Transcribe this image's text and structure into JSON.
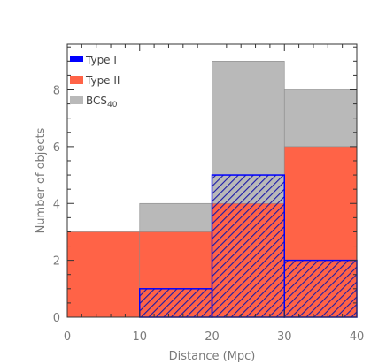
{
  "chart_data": {
    "type": "bar",
    "title": "",
    "xlabel": "Distance (Mpc)",
    "ylabel": "Number of objects",
    "bins": [
      [
        0,
        10
      ],
      [
        10,
        20
      ],
      [
        20,
        30
      ],
      [
        30,
        40
      ]
    ],
    "xlim": [
      0,
      40
    ],
    "ylim": [
      0,
      9.6
    ],
    "xticks": [
      0,
      10,
      20,
      30,
      40
    ],
    "yticks": [
      0,
      2,
      4,
      6,
      8
    ],
    "grid": false,
    "legend_position": "top-left",
    "series": [
      {
        "name": "BCS40",
        "label_base": "BCS",
        "label_sub": "40",
        "values": [
          0,
          4,
          9,
          8
        ],
        "color": "#b9b9b9",
        "style": "solid"
      },
      {
        "name": "Type II",
        "label_base": "Type II",
        "label_sub": "",
        "values": [
          3,
          3,
          4,
          6
        ],
        "color": "#ff6347",
        "style": "solid"
      },
      {
        "name": "Type I",
        "label_base": "Type I",
        "label_sub": "",
        "values": [
          0,
          1,
          5,
          2
        ],
        "color": "#0000ff",
        "style": "hatched"
      }
    ]
  }
}
